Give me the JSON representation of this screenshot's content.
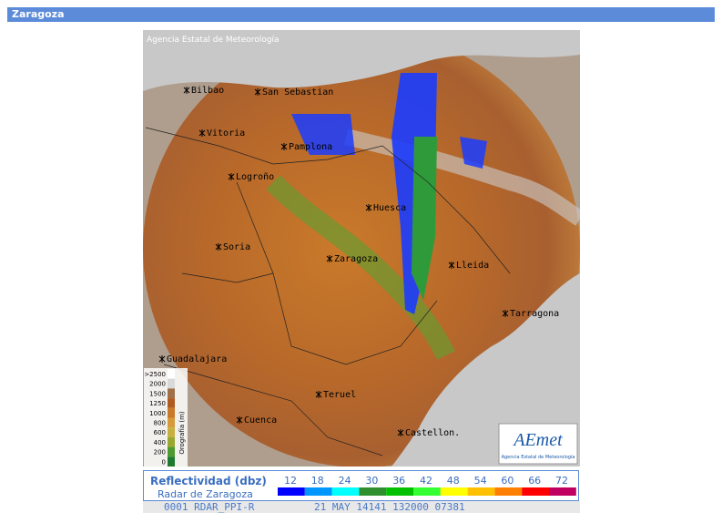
{
  "header": {
    "title": "Zaragoza"
  },
  "map": {
    "copyright": "Agencia Estatal de Meteorología",
    "cities": [
      "Bilbao",
      "San Sebastian",
      "Vitoria",
      "Pamplona",
      "Logroño",
      "Huesca",
      "Soria",
      "Zaragoza",
      "Lleida",
      "Tarragona",
      "Guadalajara",
      "Teruel",
      "Cuenca",
      "Castellon."
    ],
    "orography": {
      "title": "Orografía (m)",
      "ticks": [
        ">2500",
        "2000",
        "1500",
        "1250",
        "1000",
        "800",
        "600",
        "400",
        "200",
        "0"
      ],
      "colors": [
        "#ffffff",
        "#d9d9d9",
        "#a0704a",
        "#b05a20",
        "#c97a2a",
        "#d69a3a",
        "#c8b040",
        "#9aa830",
        "#4f9a30",
        "#1f7a30"
      ]
    },
    "logo": {
      "name": "AEmet",
      "subtitle": "Agencia Estatal de Meteorología"
    }
  },
  "legend": {
    "title": "Reflectividad (dbz)",
    "subtitle": "Radar de Zaragoza",
    "items": [
      {
        "value": "12",
        "color": "#0000ff"
      },
      {
        "value": "18",
        "color": "#0096ff"
      },
      {
        "value": "24",
        "color": "#00ffff"
      },
      {
        "value": "30",
        "color": "#2f8f2f"
      },
      {
        "value": "36",
        "color": "#00c000"
      },
      {
        "value": "42",
        "color": "#33ff33"
      },
      {
        "value": "48",
        "color": "#ffff00"
      },
      {
        "value": "54",
        "color": "#ffc000"
      },
      {
        "value": "60",
        "color": "#ff8000"
      },
      {
        "value": "66",
        "color": "#ff0000"
      },
      {
        "value": "72",
        "color": "#c00060"
      }
    ]
  },
  "status": {
    "left": "0001 RDAR_PPI-R",
    "right": "21 MAY 14141 132000 07381"
  }
}
